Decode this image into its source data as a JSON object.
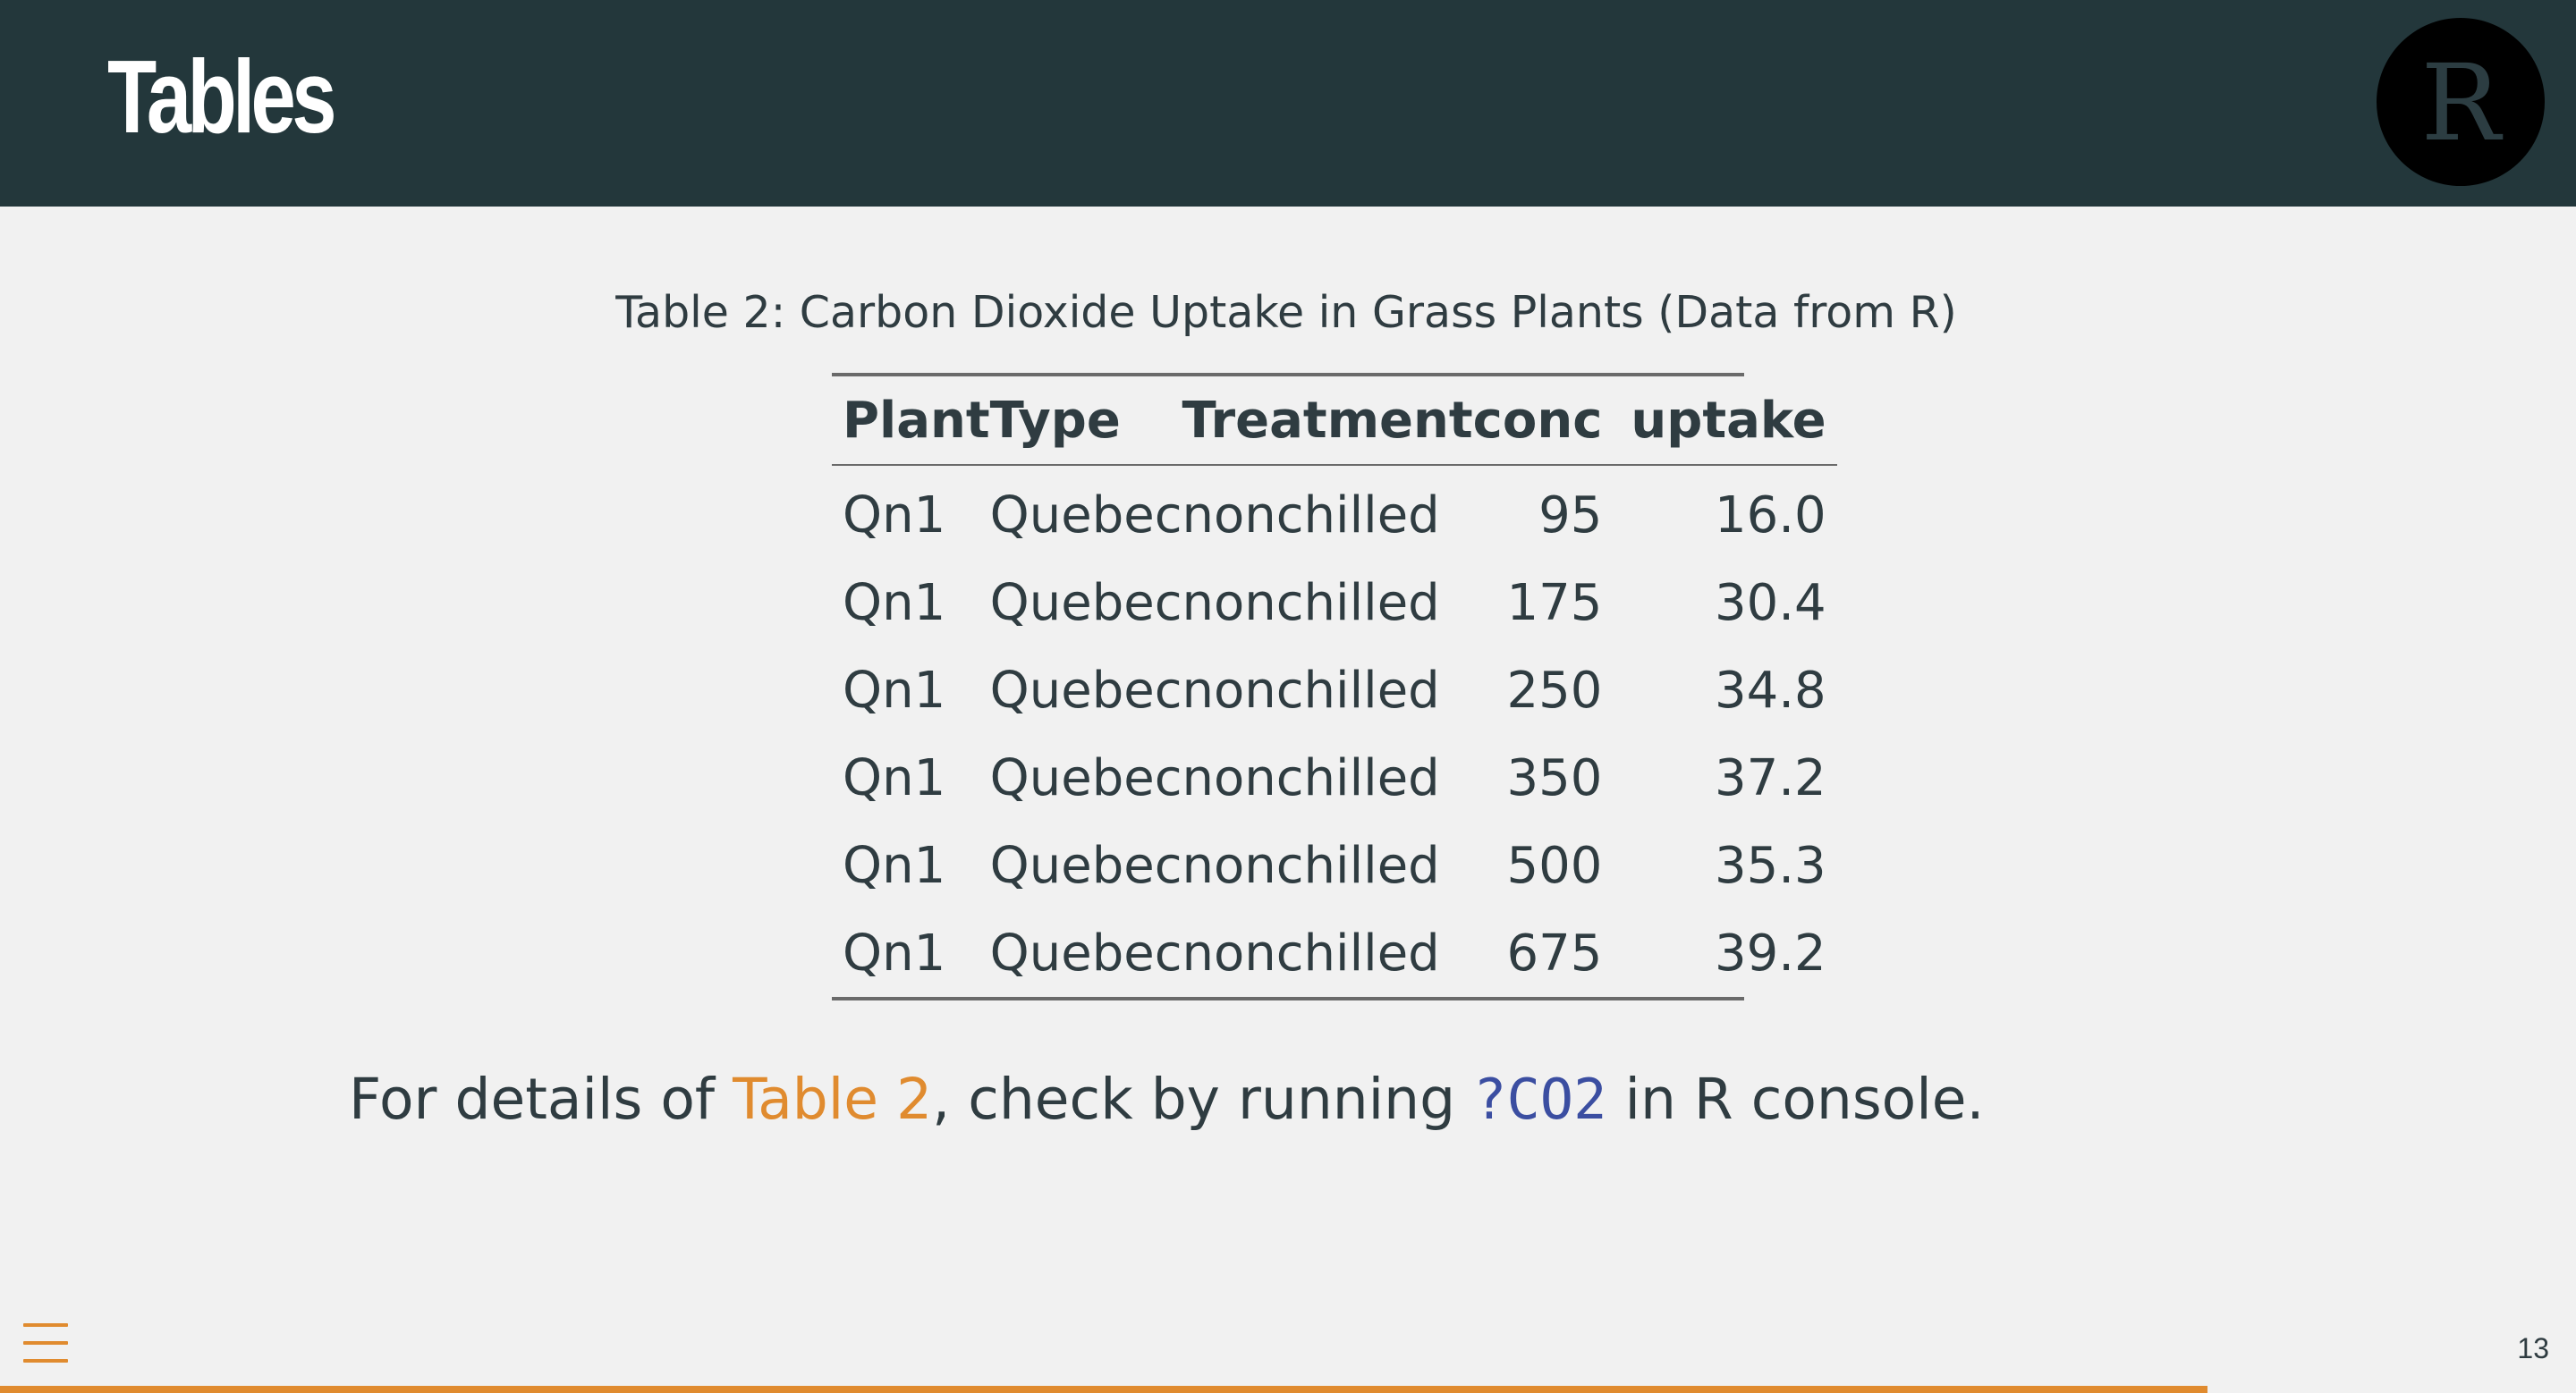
{
  "header": {
    "title": "Tables",
    "logo_text": "R"
  },
  "table": {
    "caption": "Table 2: Carbon Dioxide Uptake in Grass Plants (Data from R)",
    "columns": [
      "Plant",
      "Type",
      "Treatment",
      "conc",
      "uptake"
    ],
    "rows": [
      [
        "Qn1",
        "Quebec",
        "nonchilled",
        "95",
        "16.0"
      ],
      [
        "Qn1",
        "Quebec",
        "nonchilled",
        "175",
        "30.4"
      ],
      [
        "Qn1",
        "Quebec",
        "nonchilled",
        "250",
        "34.8"
      ],
      [
        "Qn1",
        "Quebec",
        "nonchilled",
        "350",
        "37.2"
      ],
      [
        "Qn1",
        "Quebec",
        "nonchilled",
        "500",
        "35.3"
      ],
      [
        "Qn1",
        "Quebec",
        "nonchilled",
        "675",
        "39.2"
      ]
    ]
  },
  "note": {
    "prefix": "For details of ",
    "table_ref": "Table 2",
    "middle": ", check by running ",
    "code": "?CO2",
    "suffix": " in R console."
  },
  "footer": {
    "menu_icon": "menu-icon",
    "page_number": "13",
    "progress": 0.857,
    "accent_color": "#e08b2f"
  },
  "colors": {
    "header_bg": "#23373b",
    "background": "#f1f1f1",
    "accent": "#e08b2f",
    "code": "#3b4ea1"
  }
}
